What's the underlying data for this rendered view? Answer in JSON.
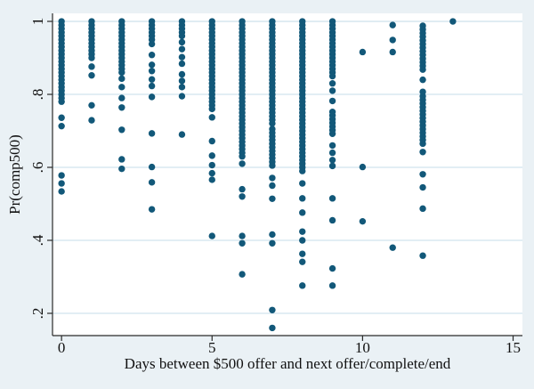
{
  "figure": {
    "background_color": "#eaf1f5",
    "plot_background_color": "#ffffff",
    "grid_color": "#d9e8f1",
    "axis_color": "#2a2a2a",
    "marker_color": "#125879",
    "text_color": "#111111"
  },
  "chart_data": {
    "type": "scatter",
    "title": "",
    "xlabel": "Days between $500 offer and next offer/complete/end",
    "ylabel": "Pr(comp500)",
    "legend": "none",
    "grid": "horizontal",
    "xlim": [
      -0.3,
      15.31
    ],
    "ylim": [
      0.139,
      1.022
    ],
    "xticks": {
      "values": [
        0,
        5,
        10,
        15
      ],
      "labels": [
        "0",
        "5",
        "10",
        "15"
      ]
    },
    "yticks": {
      "values": [
        0.2,
        0.4,
        0.6,
        0.8,
        1.0
      ],
      "labels": [
        ".2",
        ".4",
        ".6",
        ".8",
        "1"
      ]
    },
    "marker_diameter_px": 7.4,
    "band_fill_step": 0.01,
    "columns": [
      {
        "x": 0,
        "bands": [
          [
            0.78,
            1.0
          ]
        ],
        "dots": [
          0.736,
          0.713,
          0.578,
          0.556,
          0.534
        ]
      },
      {
        "x": 1,
        "bands": [
          [
            0.9,
            1.0
          ]
        ],
        "dots": [
          0.876,
          0.852,
          0.77,
          0.729
        ]
      },
      {
        "x": 2,
        "bands": [
          [
            0.86,
            1.0
          ]
        ],
        "dots": [
          0.843,
          0.82,
          0.79,
          0.764,
          0.703,
          0.622,
          0.596
        ]
      },
      {
        "x": 3,
        "bands": [
          [
            0.945,
            1.0
          ]
        ],
        "dots": [
          0.938,
          0.908,
          0.881,
          0.864,
          0.841,
          0.823,
          0.793,
          0.693,
          0.601,
          0.559,
          0.485
        ]
      },
      {
        "x": 4,
        "bands": [
          [
            0.955,
            1.0
          ]
        ],
        "dots": [
          0.943,
          0.924,
          0.902,
          0.884,
          0.855,
          0.837,
          0.82,
          0.795,
          0.69
        ]
      },
      {
        "x": 5,
        "bands": [
          [
            0.755,
            1.0
          ]
        ],
        "dots": [
          0.737,
          0.672,
          0.632,
          0.606,
          0.584,
          0.566,
          0.412
        ]
      },
      {
        "x": 6,
        "bands": [
          [
            0.625,
            1.0
          ]
        ],
        "dots": [
          0.61,
          0.54,
          0.52,
          0.412,
          0.392,
          0.307
        ]
      },
      {
        "x": 7,
        "bands": [
          [
            0.715,
            1.0
          ],
          [
            0.6,
            0.705
          ]
        ],
        "dots": [
          0.571,
          0.55,
          0.514,
          0.416,
          0.392,
          0.209,
          0.16
        ]
      },
      {
        "x": 8,
        "bands": [
          [
            0.59,
            1.0
          ]
        ],
        "dots": [
          0.556,
          0.515,
          0.476,
          0.424,
          0.4,
          0.363,
          0.341,
          0.276
        ]
      },
      {
        "x": 9,
        "bands": [
          [
            0.845,
            1.0
          ],
          [
            0.685,
            0.752
          ]
        ],
        "dots": [
          0.83,
          0.81,
          0.782,
          0.66,
          0.64,
          0.62,
          0.604,
          0.515,
          0.455,
          0.323,
          0.276
        ]
      },
      {
        "x": 10,
        "bands": [],
        "dots": [
          0.916,
          0.601,
          0.452
        ]
      },
      {
        "x": 11,
        "bands": [],
        "dots": [
          0.99,
          0.949,
          0.916,
          0.38
        ]
      },
      {
        "x": 12,
        "bands": [
          [
            0.862,
            0.988
          ],
          [
            0.658,
            0.795
          ]
        ],
        "dots": [
          0.84,
          0.807,
          0.642,
          0.581,
          0.545,
          0.487,
          0.358
        ]
      },
      {
        "x": 13,
        "bands": [],
        "dots": [
          1.0
        ]
      }
    ]
  }
}
